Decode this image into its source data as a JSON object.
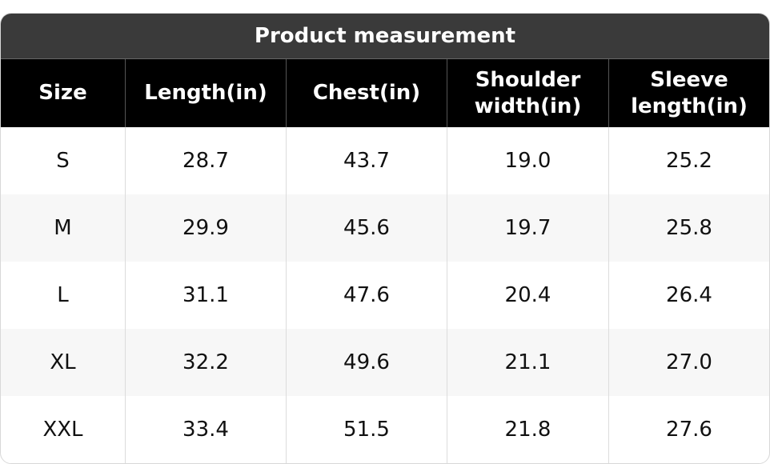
{
  "header": {
    "title": "Product measurement"
  },
  "table": {
    "columns": [
      "Size",
      "Length(in)",
      "Chest(in)",
      "Shoulder width(in)",
      "Sleeve length(in)"
    ],
    "rows": [
      [
        "S",
        "28.7",
        "43.7",
        "19.0",
        "25.2"
      ],
      [
        "M",
        "29.9",
        "45.6",
        "19.7",
        "25.8"
      ],
      [
        "L",
        "31.1",
        "47.6",
        "20.4",
        "26.4"
      ],
      [
        "XL",
        "32.2",
        "49.6",
        "21.1",
        "27.0"
      ],
      [
        "XXL",
        "33.4",
        "51.5",
        "21.8",
        "27.6"
      ]
    ]
  }
}
